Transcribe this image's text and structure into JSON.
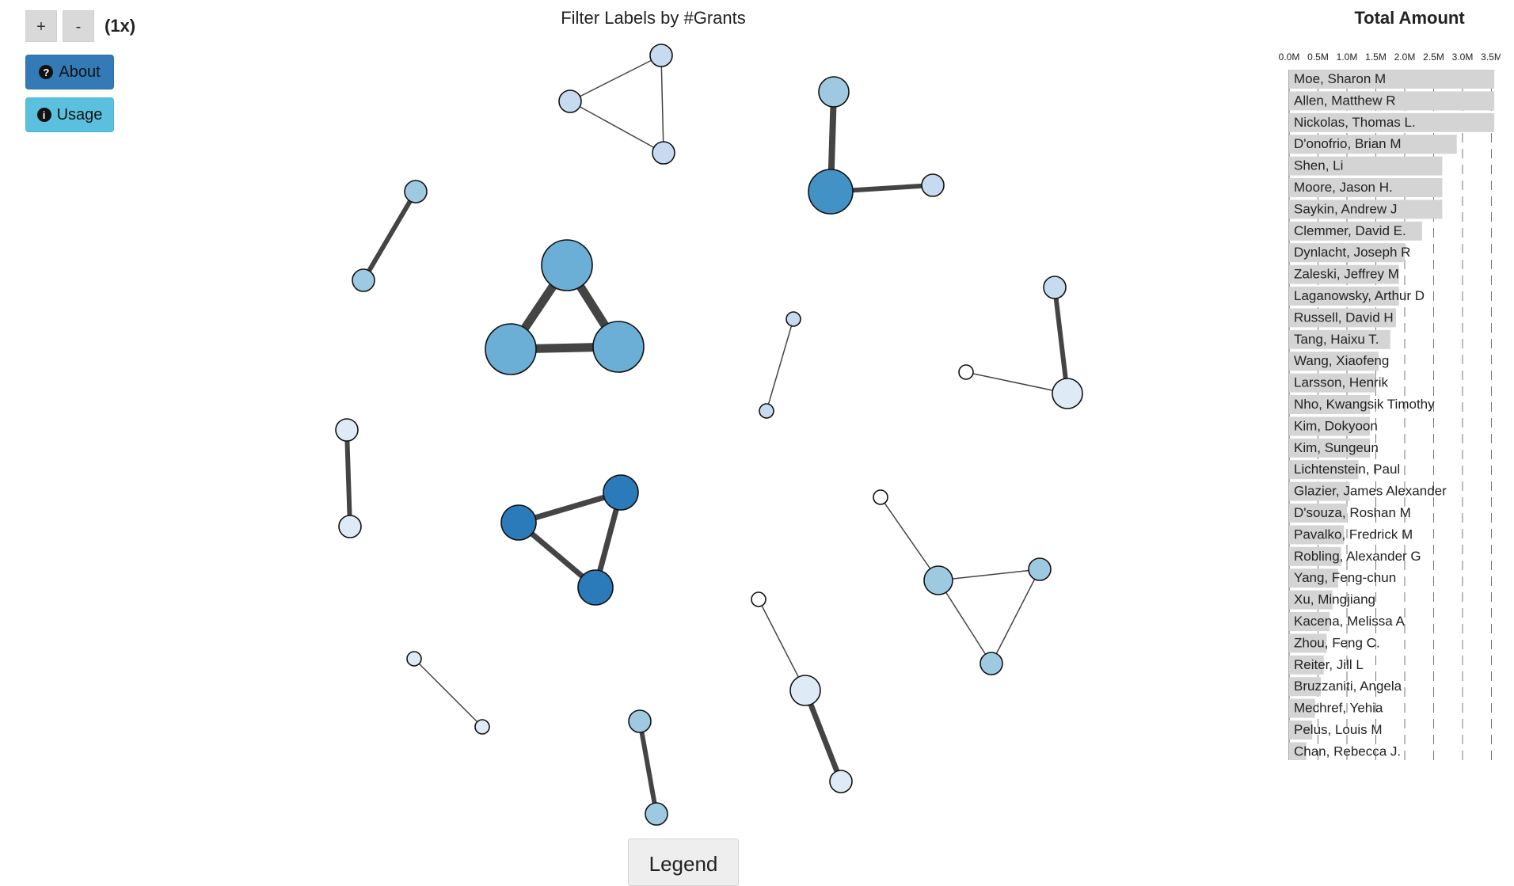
{
  "zoom": {
    "plus_label": "+",
    "minus_label": "-",
    "level": "(1x)"
  },
  "buttons": {
    "about_label": "About",
    "usage_label": "Usage",
    "about_icon": "question-circle-icon",
    "usage_icon": "info-circle-icon"
  },
  "network": {
    "title": "Filter Labels by #Grants",
    "node_palette": [
      "#ffffff",
      "#deebf7",
      "#c6dbef",
      "#9ecae1",
      "#6baed6",
      "#4292c6",
      "#2b7bba"
    ],
    "edge_color": "#444444",
    "node_stroke": "#111111"
  },
  "legend": {
    "label": "Legend"
  },
  "side_chart": {
    "title": "Total Amount"
  },
  "chart_data": {
    "type": "bar",
    "orientation": "horizontal",
    "title": "Total Amount",
    "x_tick_labels": [
      "0.0M",
      "0.5M",
      "1.0M",
      "1.5M",
      "2.0M",
      "2.5M",
      "3.0M",
      "3.5M"
    ],
    "xlim": [
      0,
      3.7
    ],
    "grid": "dashed vertical",
    "bar_color": "#d4d4d4",
    "categories": [
      "Moe, Sharon M",
      "Allen, Matthew R",
      "Nickolas, Thomas L.",
      "D'onofrio, Brian M",
      "Shen, Li",
      "Moore, Jason H.",
      "Saykin, Andrew J",
      "Clemmer, David E.",
      "Dynlacht, Joseph R",
      "Zaleski, Jeffrey M",
      "Laganowsky, Arthur D",
      "Russell, David H",
      "Tang, Haixu T.",
      "Wang, Xiaofeng",
      "Larsson, Henrik",
      "Nho, Kwangsik Timothy",
      "Kim, Dokyoon",
      "Kim, Sungeun",
      "Lichtenstein, Paul",
      "Glazier, James Alexander",
      "D'souza, Roshan M",
      "Pavalko, Fredrick M",
      "Robling, Alexander G",
      "Yang, Feng-chun",
      "Xu, Mingjiang",
      "Kacena, Melissa A",
      "Zhou, Feng C.",
      "Reiter, Jill L",
      "Bruzzaniti, Angela",
      "Mechref, Yehia",
      "Pelus, Louis M",
      "Chan, Rebecca J."
    ],
    "values": [
      3.55,
      3.55,
      3.55,
      2.9,
      2.65,
      2.65,
      2.65,
      2.3,
      2.0,
      1.9,
      1.9,
      1.85,
      1.75,
      1.55,
      1.5,
      1.4,
      1.4,
      1.4,
      1.2,
      1.05,
      1.0,
      0.95,
      0.9,
      0.85,
      0.75,
      0.7,
      0.65,
      0.6,
      0.55,
      0.45,
      0.4,
      0.3
    ]
  }
}
